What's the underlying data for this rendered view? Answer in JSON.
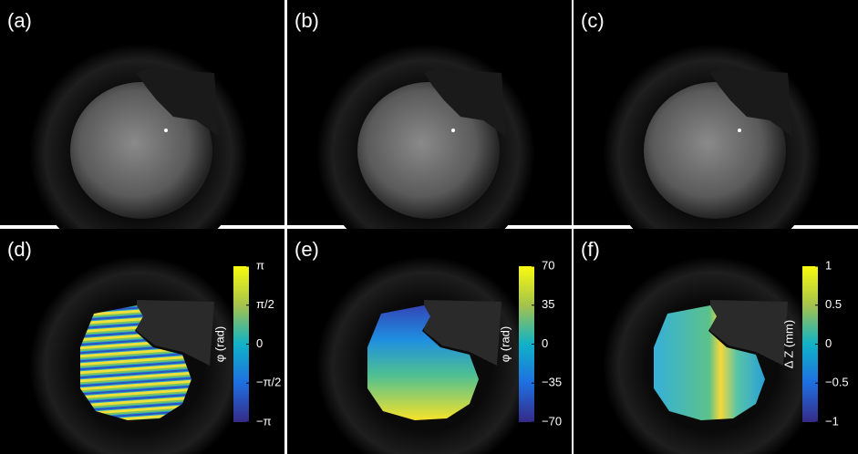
{
  "panels": [
    {
      "label": "(a)"
    },
    {
      "label": "(b)"
    },
    {
      "label": "(c)"
    },
    {
      "label": "(d)",
      "colorbar": {
        "label": "φ (rad)",
        "lim": [
          -3.14159,
          3.14159
        ],
        "ticks": [
          {
            "value": 3.14159,
            "label": "π"
          },
          {
            "value": 1.5708,
            "label": "π/2"
          },
          0,
          {
            "value": -1.5708,
            "label": "−π/2"
          },
          {
            "value": -3.14159,
            "label": "−π"
          }
        ]
      }
    },
    {
      "label": "(e)",
      "colorbar": {
        "label": "φ (rad)",
        "lim": [
          -70,
          70
        ],
        "ticks": [
          70,
          35,
          0,
          {
            "value": -35,
            "label": "−35"
          },
          {
            "value": -70,
            "label": "−70"
          }
        ]
      }
    },
    {
      "label": "(f)",
      "colorbar": {
        "label": "Δ Z (mm)",
        "lim": [
          -1,
          1
        ],
        "ticks": [
          1,
          0.5,
          0,
          {
            "value": -0.5,
            "label": "−0.5"
          },
          {
            "value": -1,
            "label": "−1"
          }
        ]
      }
    }
  ]
}
